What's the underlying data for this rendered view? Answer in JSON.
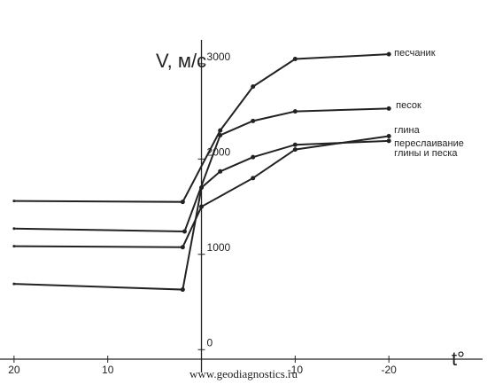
{
  "chart_data": {
    "type": "line",
    "y_label": "V, м/с",
    "x_label": "t°",
    "watermark": "www.geodiagnostics.ru",
    "xlim": [
      21.5,
      -30
    ],
    "ylim": [
      -100,
      3250
    ],
    "xticks": [
      20,
      10,
      -10,
      -20
    ],
    "yticks": [
      0,
      1000,
      2000,
      3000
    ],
    "color": "#222222",
    "series": [
      {
        "name": "песчаник",
        "x": [
          20,
          2,
          -2,
          -5.5,
          -10,
          -20
        ],
        "values": [
          1560,
          1550,
          2300,
          2760,
          3050,
          3100
        ]
      },
      {
        "name": "песок",
        "x": [
          20,
          1.8,
          -2,
          -5.5,
          -10,
          -20
        ],
        "values": [
          1270,
          1240,
          2250,
          2400,
          2500,
          2530
        ]
      },
      {
        "name": "глина",
        "x": [
          20,
          2,
          0,
          -5.5,
          -10,
          -20
        ],
        "values": [
          1085,
          1075,
          1500,
          1800,
          2100,
          2240
        ]
      },
      {
        "name": "переслаивание глины и песка",
        "x": [
          20,
          2,
          0,
          -2,
          -5.5,
          -10,
          -20
        ],
        "values": [
          690,
          630,
          1700,
          1870,
          2020,
          2150,
          2190
        ]
      }
    ]
  }
}
